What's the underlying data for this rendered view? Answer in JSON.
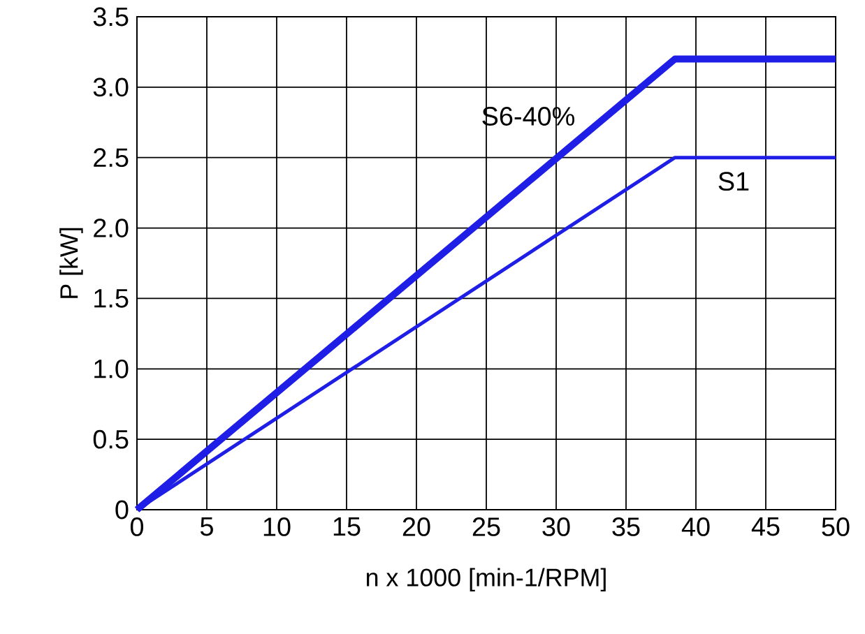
{
  "chart_data": {
    "type": "line",
    "xlabel": "n x 1000 [min-1/RPM]",
    "ylabel": "P [kW]",
    "series": [
      {
        "name": "S6-40%",
        "color": "#1e1ee6",
        "x": [
          0,
          38.5,
          50
        ],
        "values": [
          0,
          3.2,
          3.2
        ]
      },
      {
        "name": "S1",
        "color": "#1e1ee6",
        "x": [
          0,
          38.5,
          50
        ],
        "values": [
          0,
          2.5,
          2.5
        ]
      }
    ],
    "xlim": [
      0,
      50
    ],
    "ylim": [
      0,
      3.5
    ],
    "xticks": [
      0,
      5,
      10,
      15,
      20,
      25,
      30,
      35,
      40,
      45,
      50
    ],
    "yticks": [
      0,
      0.5,
      {
        "value": 1,
        "label": "1.0"
      },
      1.5,
      {
        "value": 2,
        "label": "2.0"
      },
      2.5,
      {
        "value": 3,
        "label": "3.0"
      },
      3.5
    ],
    "grid": true,
    "legend": false,
    "marker": "none",
    "line_style": "solid"
  }
}
